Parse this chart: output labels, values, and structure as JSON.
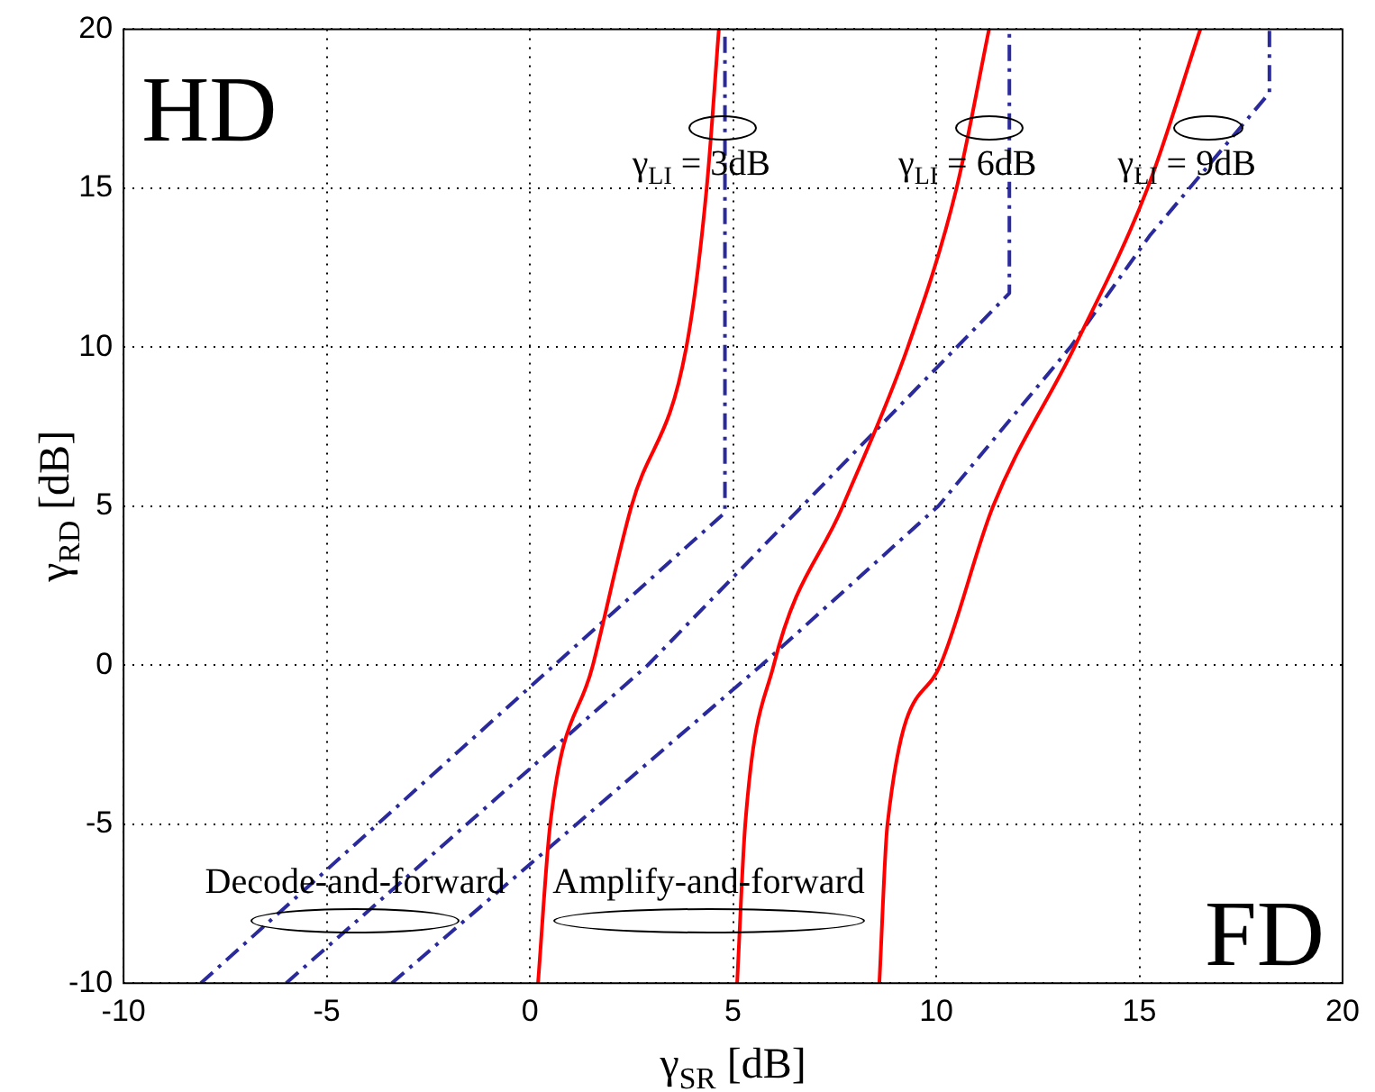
{
  "chart_data": {
    "type": "line",
    "xlabel": "γ$_{SR}$ [dB]",
    "ylabel": "γ$_{RD}$ [dB]",
    "xlim": [
      -10,
      20
    ],
    "ylim": [
      -10,
      20
    ],
    "xticks": [
      -10,
      -5,
      0,
      5,
      10,
      15,
      20
    ],
    "yticks": [
      -10,
      -5,
      0,
      5,
      10,
      15,
      20
    ],
    "grid": true,
    "marker": "none",
    "series": [
      {
        "color": "#ff0000",
        "line_style": "solid",
        "x": [
          0.2,
          0.5,
          1.55,
          2.5,
          3.85,
          4.35,
          4.65
        ],
        "values": [
          -10,
          -5,
          0,
          5,
          10,
          15,
          20
        ]
      },
      {
        "color": "#ff0000",
        "line_style": "solid",
        "x": [
          5.1,
          5.3,
          6.0,
          7.7,
          9.3,
          10.5,
          11.3
        ],
        "values": [
          -10,
          -5,
          0,
          5,
          10,
          15,
          20
        ]
      },
      {
        "color": "#ff0000",
        "line_style": "solid",
        "x": [
          8.6,
          8.8,
          10.1,
          11.4,
          13.4,
          15.2,
          16.5
        ],
        "values": [
          -10,
          -5,
          0,
          5,
          10,
          15,
          20
        ]
      },
      {
        "color": "#2a2a9c",
        "line_style": "dashed",
        "x": [
          -8.1,
          0.6,
          4.8,
          4.8
        ],
        "values": [
          -10,
          0,
          4.8,
          20
        ]
      },
      {
        "color": "#2a2a9c",
        "line_style": "dashed",
        "x": [
          -6.0,
          2.9,
          6.7,
          11.8,
          11.8
        ],
        "values": [
          -10,
          0,
          5,
          11.7,
          20
        ]
      },
      {
        "color": "#2a2a9c",
        "line_style": "dashed",
        "x": [
          -3.4,
          5.7,
          10.05,
          13.3,
          15.25,
          18.2,
          18.2
        ],
        "values": [
          -10,
          0,
          5,
          10,
          13.5,
          18,
          20
        ]
      }
    ],
    "annotations": [
      "HD",
      "FD",
      {
        "text": "γ$_{LI}$ = 3dB",
        "x": 4.75,
        "y": 16.9
      },
      {
        "text": "γ$_{LI}$ = 6dB",
        "x": 11.3,
        "y": 16.9
      },
      {
        "text": "γ$_{LI}$ = 9dB",
        "x": 16.7,
        "y": 16.9
      },
      "Decode-and-forward",
      "Amplify-and-forward"
    ]
  }
}
